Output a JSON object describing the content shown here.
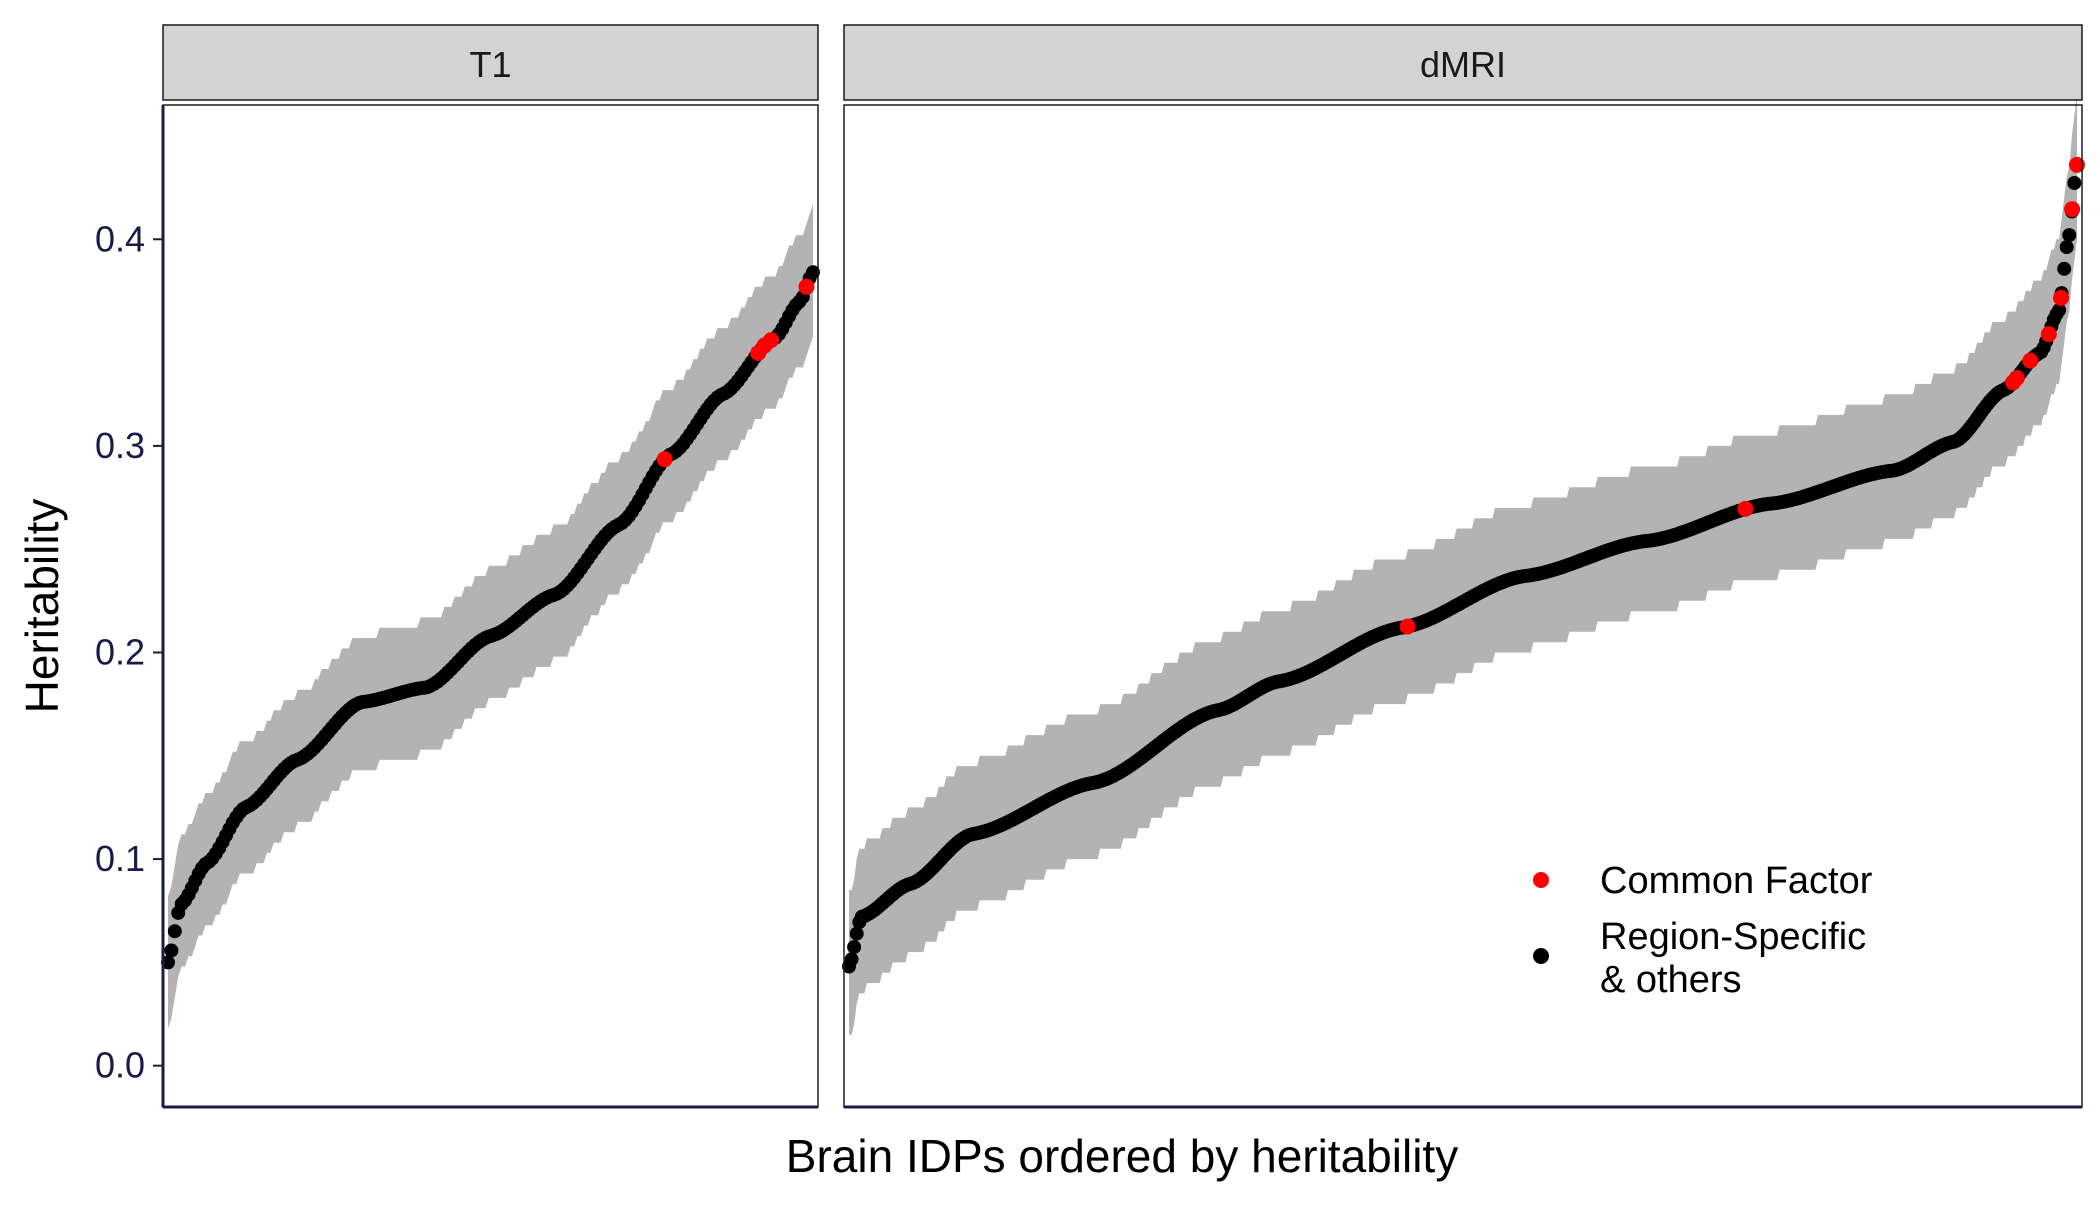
{
  "chart_data": {
    "type": "scatter",
    "ylabel": "Heritability",
    "xlabel": "Brain IDPs ordered by heritability",
    "ylim": [
      -0.02,
      0.465
    ],
    "yticks": [
      "0.0",
      "0.1",
      "0.2",
      "0.3",
      "0.4"
    ],
    "grid": false,
    "legend_position": "bottom-right of dMRI panel",
    "colors": {
      "common_factor": "#ff0000",
      "region_specific": "#000000",
      "ci_band": "#b3b3b3",
      "strip_fill": "#d3d3d3"
    },
    "legend": [
      {
        "key": "common_factor",
        "label": "Common Factor"
      },
      {
        "key": "region_specific",
        "label_line1": "Region-Specific",
        "label_line2": " & others"
      }
    ],
    "panels": [
      {
        "name": "T1",
        "n_points": 190,
        "ci_half_width": 0.032,
        "curve_anchors": [
          [
            0,
            0.05
          ],
          [
            0.02,
            0.078
          ],
          [
            0.06,
            0.098
          ],
          [
            0.12,
            0.125
          ],
          [
            0.2,
            0.148
          ],
          [
            0.3,
            0.176
          ],
          [
            0.4,
            0.183
          ],
          [
            0.5,
            0.208
          ],
          [
            0.6,
            0.228
          ],
          [
            0.7,
            0.262
          ],
          [
            0.78,
            0.296
          ],
          [
            0.86,
            0.325
          ],
          [
            0.94,
            0.352
          ],
          [
            0.98,
            0.37
          ],
          [
            1.0,
            0.384
          ]
        ],
        "common_factor_ranks": [
          0.77,
          0.915,
          0.925,
          0.935,
          0.99
        ]
      },
      {
        "name": "dMRI",
        "n_points": 480,
        "ci_half_width": 0.035,
        "curve_anchors": [
          [
            0,
            0.048
          ],
          [
            0.01,
            0.072
          ],
          [
            0.05,
            0.088
          ],
          [
            0.1,
            0.112
          ],
          [
            0.2,
            0.137
          ],
          [
            0.3,
            0.172
          ],
          [
            0.35,
            0.186
          ],
          [
            0.45,
            0.212
          ],
          [
            0.55,
            0.237
          ],
          [
            0.65,
            0.254
          ],
          [
            0.75,
            0.272
          ],
          [
            0.85,
            0.288
          ],
          [
            0.9,
            0.302
          ],
          [
            0.94,
            0.327
          ],
          [
            0.97,
            0.345
          ],
          [
            0.985,
            0.365
          ],
          [
            0.993,
            0.4
          ],
          [
            1.0,
            0.436
          ]
        ],
        "common_factor_ranks": [
          0.455,
          0.73,
          0.948,
          0.951,
          0.962,
          0.977,
          0.987,
          0.996,
          1.0
        ]
      }
    ]
  }
}
